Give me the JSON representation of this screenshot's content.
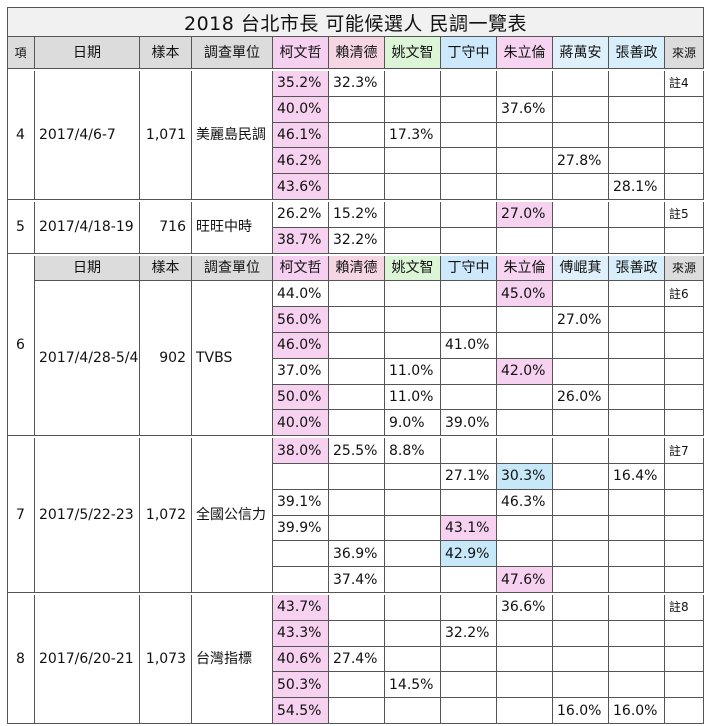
{
  "title": "2018 台北市長 可能候選人 民調一覽表",
  "header1": [
    "項",
    "日期",
    "樣本",
    "調查單位",
    "柯文哲",
    "賴清德",
    "姚文智",
    "丁守中",
    "朱立倫",
    "蔣萬安",
    "張善政",
    "來源"
  ],
  "header2": [
    "日期",
    "樣本",
    "調查單位",
    "柯文哲",
    "賴清德",
    "姚文智",
    "丁守中",
    "朱立倫",
    "傅崐萁",
    "張善政",
    "來源"
  ],
  "colors": {
    "ko": "#f5d0f0",
    "lai": "#f7d6e4",
    "yao": "#dbf5d6",
    "ting": "#cde8fa",
    "chu": "#f7d4f2",
    "chiang": "#dff0fa",
    "chang": "#d8eefa",
    "pink": "#f7d2f0",
    "blue": "#c6e8f9",
    "header": "#dcdcdc"
  },
  "groups": [
    {
      "item": "4",
      "date": "2017/4/6-7",
      "sample": "1,071",
      "org": "美麗島民調",
      "source": "註4",
      "rows": [
        [
          "35.2%",
          "32.3%",
          "",
          "",
          "",
          "",
          ""
        ],
        [
          "40.0%",
          "",
          "",
          "",
          "37.6%",
          "",
          ""
        ],
        [
          "46.1%",
          "",
          "17.3%",
          "",
          "",
          "",
          ""
        ],
        [
          "46.2%",
          "",
          "",
          "",
          "",
          "27.8%",
          ""
        ],
        [
          "43.6%",
          "",
          "",
          "",
          "",
          "",
          "28.1%"
        ]
      ]
    },
    {
      "item": "5",
      "date": "2017/4/18-19",
      "sample": "716",
      "org": "旺旺中時",
      "source": "註5",
      "rows": [
        [
          "26.2%",
          "15.2%",
          "",
          "",
          "27.0%",
          "",
          ""
        ],
        [
          "38.7%",
          "32.2%",
          "",
          "",
          "",
          "",
          ""
        ]
      ]
    },
    {
      "item": "6",
      "date": "2017/4/28-5/4",
      "sample": "902",
      "org": "TVBS",
      "source": "註6",
      "rows": [
        [
          "44.0%",
          "",
          "",
          "",
          "45.0%",
          "",
          ""
        ],
        [
          "56.0%",
          "",
          "",
          "",
          "",
          "27.0%",
          ""
        ],
        [
          "46.0%",
          "",
          "",
          "41.0%",
          "",
          "",
          ""
        ],
        [
          "37.0%",
          "",
          "11.0%",
          "",
          "42.0%",
          "",
          ""
        ],
        [
          "50.0%",
          "",
          "11.0%",
          "",
          "",
          "26.0%",
          ""
        ],
        [
          "40.0%",
          "",
          "9.0%",
          "39.0%",
          "",
          "",
          ""
        ]
      ]
    },
    {
      "item": "7",
      "date": "2017/5/22-23",
      "sample": "1,072",
      "org": "全國公信力",
      "source": "註7",
      "rows": [
        [
          "38.0%",
          "25.5%",
          "8.8%",
          "",
          "",
          "",
          ""
        ],
        [
          "",
          "",
          "",
          "27.1%",
          "30.3%",
          "",
          "16.4%"
        ],
        [
          "39.1%",
          "",
          "",
          "",
          "46.3%",
          "",
          ""
        ],
        [
          "39.9%",
          "",
          "",
          "43.1%",
          "",
          "",
          ""
        ],
        [
          "",
          "36.9%",
          "",
          "42.9%",
          "",
          "",
          ""
        ],
        [
          "",
          "37.4%",
          "",
          "",
          "47.6%",
          "",
          ""
        ]
      ]
    },
    {
      "item": "8",
      "date": "2017/6/20-21",
      "sample": "1,073",
      "org": "台灣指標",
      "source": "註8",
      "rows": [
        [
          "43.7%",
          "",
          "",
          "",
          "36.6%",
          "",
          ""
        ],
        [
          "43.3%",
          "",
          "",
          "32.2%",
          "",
          "",
          ""
        ],
        [
          "40.6%",
          "27.4%",
          "",
          "",
          "",
          "",
          ""
        ],
        [
          "50.3%",
          "",
          "14.5%",
          "",
          "",
          "",
          ""
        ],
        [
          "54.5%",
          "",
          "",
          "",
          "",
          "16.0%",
          "16.0%"
        ]
      ]
    }
  ]
}
